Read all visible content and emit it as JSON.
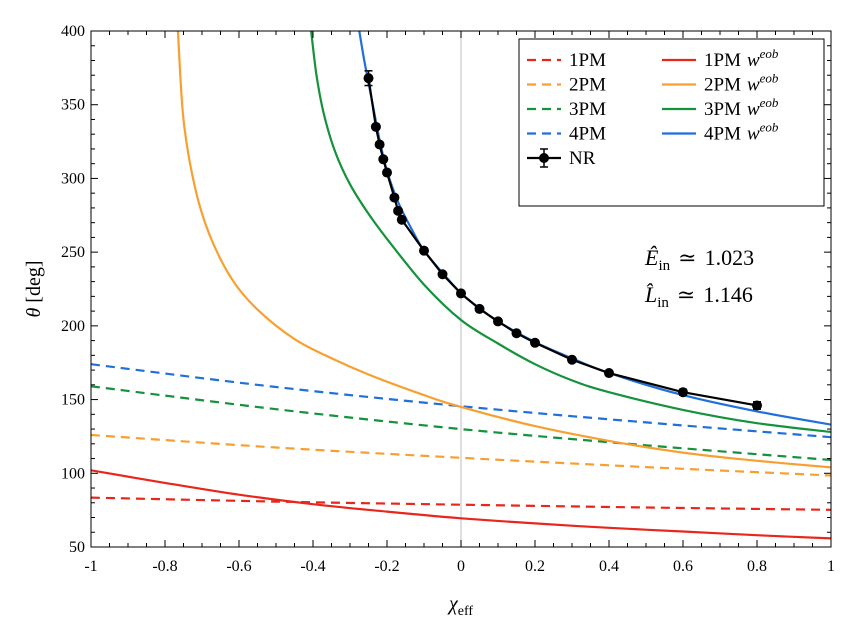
{
  "chart_data": {
    "type": "line",
    "title": "",
    "xlabel": "χ",
    "xlabel_sub": "eff",
    "ylabel": "θ",
    "ylabel_unit": "[deg]",
    "xlim": [
      -1,
      1
    ],
    "ylim": [
      50,
      400
    ],
    "xticks": [
      -1,
      -0.8,
      -0.6,
      -0.4,
      -0.2,
      0,
      0.2,
      0.4,
      0.6,
      0.8,
      1
    ],
    "xtick_labels": [
      "-1",
      "-0.8",
      "-0.6",
      "-0.4",
      "-0.2",
      "0",
      "0.2",
      "0.4",
      "0.6",
      "0.8",
      "1"
    ],
    "yticks": [
      50,
      100,
      150,
      200,
      250,
      300,
      350,
      400
    ],
    "ytick_labels": [
      "50",
      "100",
      "150",
      "200",
      "250",
      "300",
      "350",
      "400"
    ],
    "vline_x": 0,
    "legend_position": "top-right",
    "colors": {
      "1PM": "#e8261c",
      "2PM": "#f7a031",
      "3PM": "#14923c",
      "4PM": "#1f6fdc",
      "NR": "#000000",
      "vline": "#c8c8c8"
    },
    "series": [
      {
        "name": "1PM",
        "style": "dashed",
        "color_key": "1PM",
        "x": [
          -1,
          -0.5,
          0,
          0.5,
          1
        ],
        "y": [
          83.5,
          80.8,
          78.7,
          76.8,
          75.2
        ]
      },
      {
        "name": "2PM",
        "style": "dashed",
        "color_key": "2PM",
        "x": [
          -1,
          -0.5,
          0,
          0.5,
          1
        ],
        "y": [
          126,
          117.5,
          110.5,
          104.2,
          98.5
        ]
      },
      {
        "name": "3PM",
        "style": "dashed",
        "color_key": "3PM",
        "x": [
          -1,
          -0.5,
          0,
          0.5,
          1
        ],
        "y": [
          159,
          143.5,
          130,
          119,
          109
        ]
      },
      {
        "name": "4PM",
        "style": "dashed",
        "color_key": "4PM",
        "x": [
          -1,
          -0.5,
          0,
          0.5,
          1
        ],
        "y": [
          174,
          158.5,
          145.5,
          134.5,
          124.5
        ]
      },
      {
        "name": "1PM w^eob",
        "style": "solid",
        "color_key": "1PM",
        "x": [
          -1,
          -0.8,
          -0.6,
          -0.4,
          -0.2,
          0,
          0.2,
          0.4,
          0.6,
          0.8,
          1
        ],
        "y": [
          102,
          93.5,
          85.5,
          79,
          74,
          69.5,
          66,
          63,
          60.5,
          58,
          55.8
        ]
      },
      {
        "name": "2PM w^eob",
        "style": "solid",
        "color_key": "2PM",
        "x": [
          -0.765,
          -0.75,
          -0.72,
          -0.68,
          -0.62,
          -0.55,
          -0.45,
          -0.35,
          -0.25,
          -0.1,
          0,
          0.2,
          0.4,
          0.6,
          0.8,
          1
        ],
        "y": [
          400,
          340,
          295,
          262,
          232,
          211,
          191,
          178,
          167,
          153,
          145,
          132,
          122,
          114,
          108.5,
          104
        ]
      },
      {
        "name": "3PM w^eob",
        "style": "solid",
        "color_key": "3PM",
        "x": [
          -0.405,
          -0.39,
          -0.37,
          -0.34,
          -0.3,
          -0.25,
          -0.2,
          -0.1,
          0,
          0.1,
          0.2,
          0.3,
          0.4,
          0.6,
          0.8,
          1
        ],
        "y": [
          400,
          369,
          343,
          318,
          296,
          276,
          259,
          228,
          204,
          188,
          174,
          163,
          155,
          143,
          134,
          128
        ]
      },
      {
        "name": "4PM w^eob",
        "style": "solid",
        "color_key": "4PM",
        "x": [
          -0.275,
          -0.26,
          -0.24,
          -0.22,
          -0.2,
          -0.17,
          -0.13,
          -0.1,
          -0.05,
          0,
          0.05,
          0.1,
          0.2,
          0.3,
          0.4,
          0.6,
          0.8,
          1
        ],
        "y": [
          400,
          378,
          352,
          326,
          305,
          284,
          264,
          251,
          236,
          222,
          212,
          203,
          189,
          178,
          168,
          153,
          142,
          133
        ]
      },
      {
        "name": "NR",
        "style": "marker-line",
        "color_key": "NR",
        "x": [
          -0.25,
          -0.23,
          -0.22,
          -0.21,
          -0.2,
          -0.18,
          -0.17,
          -0.16,
          -0.1,
          -0.05,
          0,
          0.05,
          0.1,
          0.15,
          0.2,
          0.3,
          0.4,
          0.6,
          0.8
        ],
        "y": [
          368,
          335,
          323,
          313,
          304,
          287,
          278,
          272,
          251,
          235,
          222,
          211.5,
          203,
          195,
          188.5,
          177,
          168,
          155,
          146
        ],
        "yerr": [
          5,
          1.5,
          1.5,
          1.5,
          1.5,
          1.5,
          1.5,
          1.5,
          1.5,
          1.5,
          1.5,
          1.5,
          1.5,
          1.5,
          1.5,
          1.5,
          1.5,
          2,
          2.5
        ]
      }
    ],
    "legend": [
      {
        "label": "1PM",
        "style": "dashed",
        "color_key": "1PM"
      },
      {
        "label": "1PM",
        "suffix": "w",
        "sup": "eob",
        "style": "solid",
        "color_key": "1PM"
      },
      {
        "label": "2PM",
        "style": "dashed",
        "color_key": "2PM"
      },
      {
        "label": "2PM",
        "suffix": "w",
        "sup": "eob",
        "style": "solid",
        "color_key": "2PM"
      },
      {
        "label": "3PM",
        "style": "dashed",
        "color_key": "3PM"
      },
      {
        "label": "3PM",
        "suffix": "w",
        "sup": "eob",
        "style": "solid",
        "color_key": "3PM"
      },
      {
        "label": "4PM",
        "style": "dashed",
        "color_key": "4PM"
      },
      {
        "label": "4PM",
        "suffix": "w",
        "sup": "eob",
        "style": "solid",
        "color_key": "4PM"
      },
      {
        "label": "NR",
        "style": "marker-line",
        "color_key": "NR"
      }
    ],
    "annotations": [
      {
        "symbol": "Ê",
        "sub": "in",
        "rel": "≃",
        "value": "1.023"
      },
      {
        "symbol": "L̂",
        "sub": "in",
        "rel": "≃",
        "value": "1.146"
      }
    ]
  }
}
